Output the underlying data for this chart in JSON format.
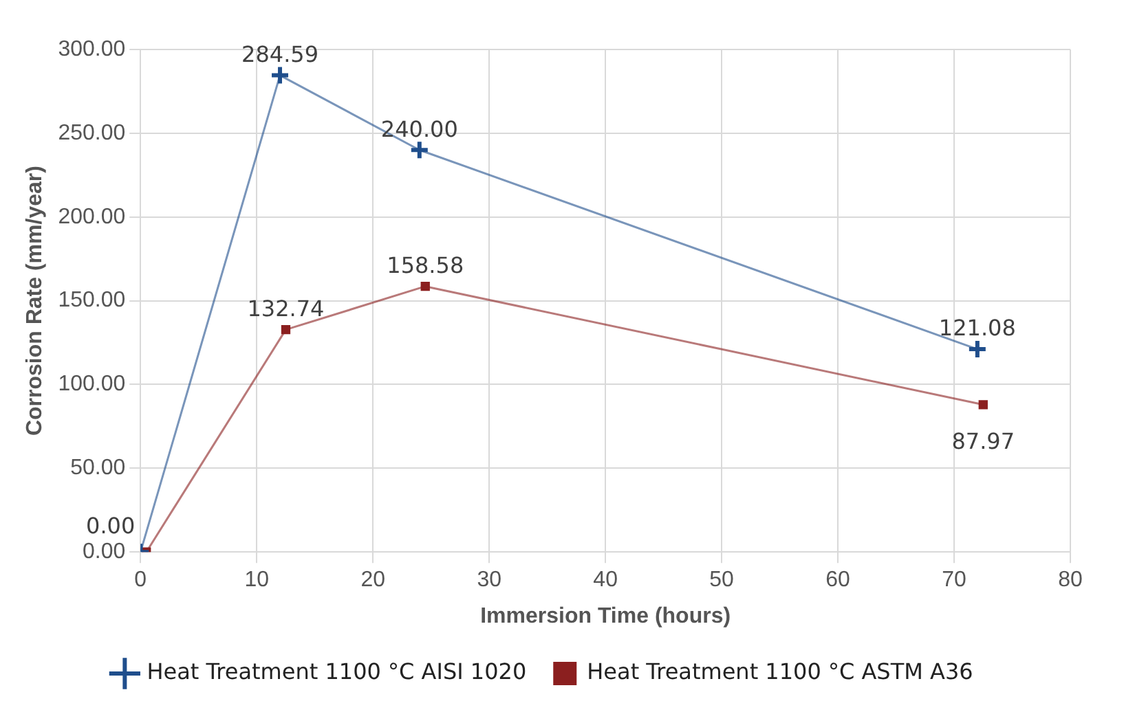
{
  "chart_data": {
    "type": "line",
    "xlabel": "Immersion Time (hours)",
    "ylabel": "Corrosion Rate (mm/year)",
    "xlim": [
      0,
      80
    ],
    "xticks": [
      0,
      10,
      20,
      30,
      40,
      50,
      60,
      70,
      80
    ],
    "ylim": [
      0,
      300
    ],
    "yticks": [
      {
        "value": 0,
        "label": "0.00"
      },
      {
        "value": 50,
        "label": "50.00"
      },
      {
        "value": 100,
        "label": "100.00"
      },
      {
        "value": 150,
        "label": "150.00"
      },
      {
        "value": 200,
        "label": "200.00"
      },
      {
        "value": 250,
        "label": "250.00"
      },
      {
        "value": 300,
        "label": "300.00"
      }
    ],
    "grid": true,
    "legend": "bottom",
    "line_style": "solid",
    "series": [
      {
        "name": "Heat Treatment 1100 °C AISI 1020",
        "color": "#1f4e8c",
        "marker": "cross",
        "x": [
          0,
          12,
          24,
          72
        ],
        "values": [
          0.0,
          284.59,
          240.0,
          121.08
        ],
        "value_labels": [
          "0.00",
          "284.59",
          "240.00",
          "121.08"
        ]
      },
      {
        "name": "Heat Treatment 1100 °C ASTM A36",
        "color": "#8b1f1f",
        "marker": "square",
        "x": [
          0.5,
          12.5,
          24.5,
          72.5
        ],
        "values": [
          0.0,
          132.74,
          158.58,
          87.97
        ],
        "value_labels": [
          null,
          "132.74",
          "158.58",
          "87.97"
        ]
      }
    ]
  }
}
